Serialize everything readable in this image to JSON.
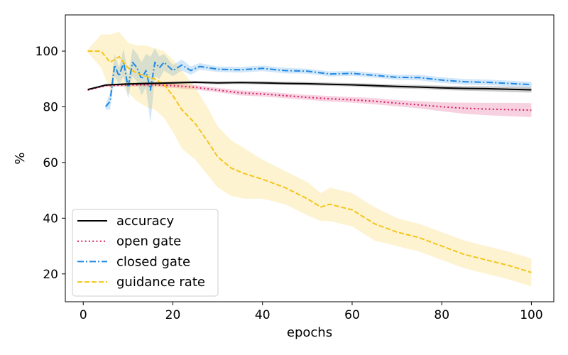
{
  "chart_data": {
    "type": "line",
    "title": "",
    "xlabel": "epochs",
    "ylabel": "%",
    "xlim": [
      -4,
      105
    ],
    "ylim": [
      10,
      113
    ],
    "xticks": [
      0,
      20,
      40,
      60,
      80,
      100
    ],
    "yticks": [
      20,
      40,
      60,
      80,
      100
    ],
    "legend_position": "lower-left",
    "series": [
      {
        "name": "accuracy",
        "color": "#000000",
        "style": "solid",
        "x": [
          1,
          5,
          10,
          15,
          20,
          25,
          30,
          35,
          40,
          45,
          50,
          55,
          60,
          65,
          70,
          75,
          80,
          85,
          90,
          95,
          100
        ],
        "values": [
          86.2,
          87.8,
          88.2,
          88.4,
          88.6,
          88.8,
          88.6,
          88.7,
          88.6,
          88.4,
          88.3,
          88.1,
          87.9,
          87.6,
          87.3,
          87.1,
          86.8,
          86.6,
          86.5,
          86.3,
          86.1
        ],
        "band": [
          0.2,
          0.3,
          0.4,
          0.5,
          0.5,
          0.5,
          0.5,
          0.5,
          0.6,
          0.6,
          0.6,
          0.6,
          0.6,
          0.7,
          0.7,
          0.7,
          0.8,
          0.8,
          0.9,
          1.0,
          1.0
        ]
      },
      {
        "name": "open gate",
        "color": "#d81b60",
        "style": "dotted",
        "x": [
          1,
          5,
          10,
          15,
          20,
          25,
          30,
          35,
          40,
          45,
          50,
          55,
          60,
          65,
          70,
          75,
          80,
          85,
          90,
          95,
          100
        ],
        "values": [
          86.0,
          87.6,
          87.8,
          87.9,
          87.6,
          87.0,
          86.0,
          85.0,
          84.6,
          84.0,
          83.4,
          82.9,
          82.5,
          82.0,
          81.3,
          80.7,
          80.0,
          79.5,
          79.2,
          79.0,
          78.8
        ],
        "band": [
          0.2,
          0.4,
          0.5,
          0.6,
          0.8,
          0.8,
          0.8,
          0.9,
          0.9,
          0.9,
          0.9,
          1.0,
          1.0,
          1.1,
          1.1,
          1.3,
          1.6,
          2.0,
          2.2,
          2.4,
          2.5
        ]
      },
      {
        "name": "closed gate",
        "color": "#1e88e5",
        "style": "dashdot",
        "x": [
          5,
          6,
          7,
          8,
          9,
          10,
          11,
          12,
          13,
          14,
          15,
          16,
          17,
          18,
          20,
          22,
          24,
          26,
          30,
          35,
          40,
          45,
          50,
          55,
          60,
          65,
          70,
          75,
          80,
          85,
          90,
          95,
          100
        ],
        "values": [
          80.0,
          82.0,
          95.0,
          91.0,
          96.0,
          87.0,
          96.0,
          94.0,
          90.0,
          93.0,
          86.0,
          96.0,
          94.0,
          96.0,
          93.0,
          95.0,
          93.0,
          94.5,
          93.5,
          93.3,
          93.8,
          93.0,
          92.8,
          91.8,
          92.0,
          91.3,
          90.6,
          90.5,
          89.6,
          89.0,
          88.8,
          88.4,
          88.0
        ],
        "band": [
          1.0,
          3.0,
          4.0,
          3.0,
          5.0,
          4.0,
          5.0,
          5.0,
          6.0,
          6.0,
          12.0,
          5.0,
          4.0,
          3.0,
          2.0,
          2.0,
          1.5,
          1.2,
          1.0,
          1.0,
          1.0,
          1.0,
          0.9,
          0.9,
          0.9,
          0.9,
          0.9,
          1.0,
          1.0,
          1.0,
          1.0,
          1.0,
          1.0
        ]
      },
      {
        "name": "guidance rate",
        "color": "#f4c518",
        "style": "dashed",
        "x": [
          1,
          4,
          6,
          8,
          10,
          12,
          14,
          16,
          18,
          20,
          22,
          25,
          28,
          30,
          33,
          36,
          40,
          45,
          50,
          53,
          55,
          60,
          65,
          70,
          75,
          80,
          85,
          90,
          95,
          100
        ],
        "values": [
          100.0,
          100.0,
          96.0,
          98.0,
          94.0,
          92.0,
          91.0,
          90.0,
          88.0,
          84.0,
          79.0,
          74.0,
          67.0,
          62.0,
          58.0,
          56.0,
          54.0,
          51.0,
          47.0,
          44.0,
          45.0,
          43.0,
          38.0,
          35.0,
          33.0,
          30.0,
          27.0,
          25.0,
          23.0,
          20.5
        ],
        "band": [
          0.5,
          6.0,
          10.0,
          9.0,
          9.0,
          10.0,
          11.0,
          11.0,
          12.0,
          13.0,
          14.0,
          13.0,
          12.0,
          11.0,
          10.0,
          9.0,
          7.0,
          6.0,
          6.0,
          5.0,
          6.0,
          6.0,
          6.0,
          5.0,
          5.0,
          5.0,
          5.0,
          5.0,
          5.0,
          5.0
        ]
      }
    ]
  }
}
